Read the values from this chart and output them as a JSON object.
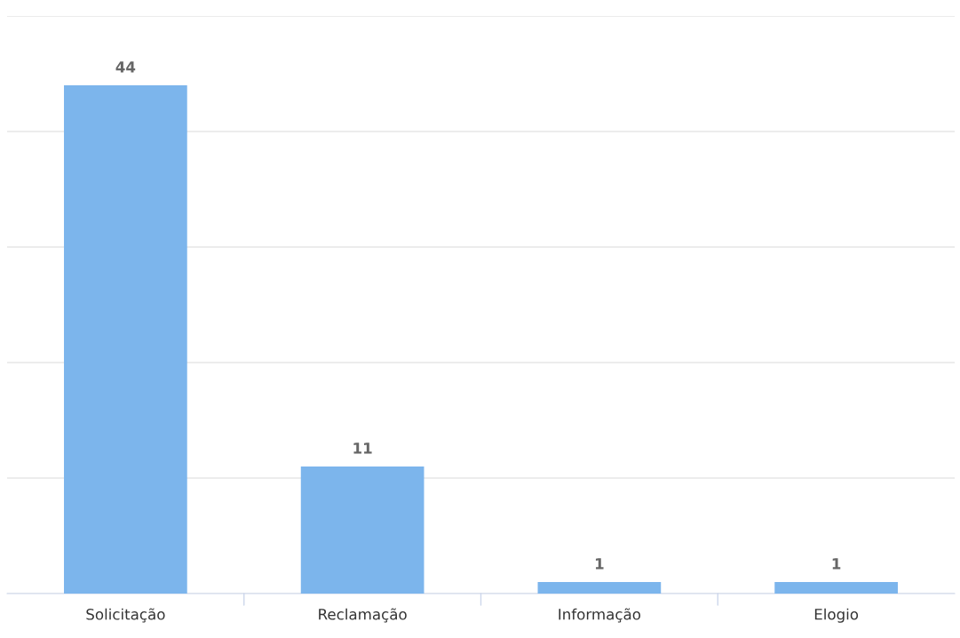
{
  "chart_data": {
    "type": "bar",
    "categories": [
      "Solicitação",
      "Reclamação",
      "Informação",
      "Elogio"
    ],
    "values": [
      44,
      11,
      1,
      1
    ],
    "color": "#7cb5ec",
    "ylim": [
      0,
      50
    ],
    "yticks": [
      {
        "value": 0,
        "label": null
      },
      {
        "value": 10,
        "label": null
      },
      {
        "value": 20,
        "label": null
      },
      {
        "value": 30,
        "label": null
      },
      {
        "value": 40,
        "label": null
      },
      {
        "value": 50,
        "label": null
      }
    ],
    "tick_labels": "x",
    "grid": "y",
    "data_labels": true
  }
}
